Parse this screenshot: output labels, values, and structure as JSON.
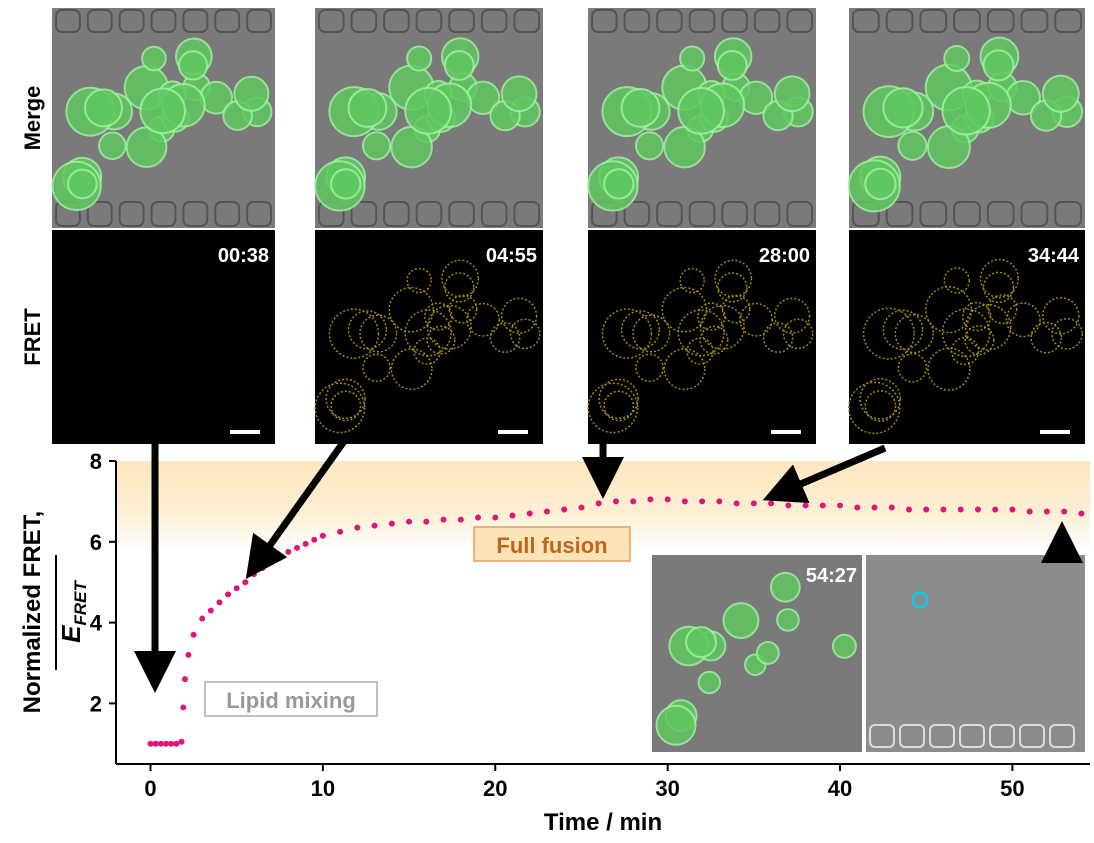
{
  "chart_data": {
    "type": "scatter",
    "x_label": "Time / min",
    "y_label": "Normalized FRET,",
    "y_label_symbol": {
      "base": "E",
      "subscript": "FRET"
    },
    "annotations": [
      "Lipid mixing",
      "Full fusion"
    ],
    "panel_labels": [
      "Merge",
      "FRET"
    ],
    "timestamps": [
      "00:38",
      "04:55",
      "28:00",
      "34:44",
      "54:27"
    ],
    "color": "#e0157a",
    "x": [
      0,
      0.3,
      0.6,
      0.9,
      1.2,
      1.5,
      1.8,
      1.9,
      2.0,
      2.2,
      2.5,
      3,
      3.5,
      4,
      4.5,
      5,
      5.5,
      6,
      6.5,
      7,
      7.5,
      8,
      8.5,
      9,
      9.5,
      10,
      11,
      12,
      13,
      14,
      15,
      16,
      17,
      18,
      19,
      20,
      21,
      22,
      23,
      24,
      25,
      26,
      27,
      28,
      29,
      30,
      31,
      32,
      33,
      34,
      35,
      36,
      37,
      38,
      39,
      40,
      41,
      42,
      43,
      44,
      45,
      46,
      47,
      48,
      49,
      50,
      51,
      52,
      53,
      54
    ],
    "values": [
      1.0,
      1.0,
      1.0,
      1.0,
      1.0,
      1.0,
      1.05,
      1.9,
      2.6,
      3.2,
      3.7,
      4.1,
      4.3,
      4.5,
      4.7,
      4.85,
      5.0,
      5.2,
      5.35,
      5.5,
      5.6,
      5.75,
      5.85,
      5.95,
      6.05,
      6.15,
      6.25,
      6.35,
      6.4,
      6.45,
      6.5,
      6.5,
      6.55,
      6.55,
      6.6,
      6.6,
      6.65,
      6.7,
      6.75,
      6.8,
      6.85,
      6.95,
      7.0,
      7.0,
      7.05,
      7.05,
      7.0,
      7.0,
      7.0,
      6.95,
      6.95,
      6.95,
      6.9,
      6.9,
      6.9,
      6.9,
      6.85,
      6.85,
      6.85,
      6.8,
      6.8,
      6.8,
      6.8,
      6.8,
      6.8,
      6.8,
      6.75,
      6.75,
      6.75,
      6.7
    ],
    "xlim": [
      -2,
      54.5
    ],
    "ylim": [
      0.5,
      8
    ],
    "xticks": [
      0,
      10,
      20,
      30,
      40,
      50
    ],
    "yticks": [
      2,
      4,
      6,
      8
    ]
  }
}
